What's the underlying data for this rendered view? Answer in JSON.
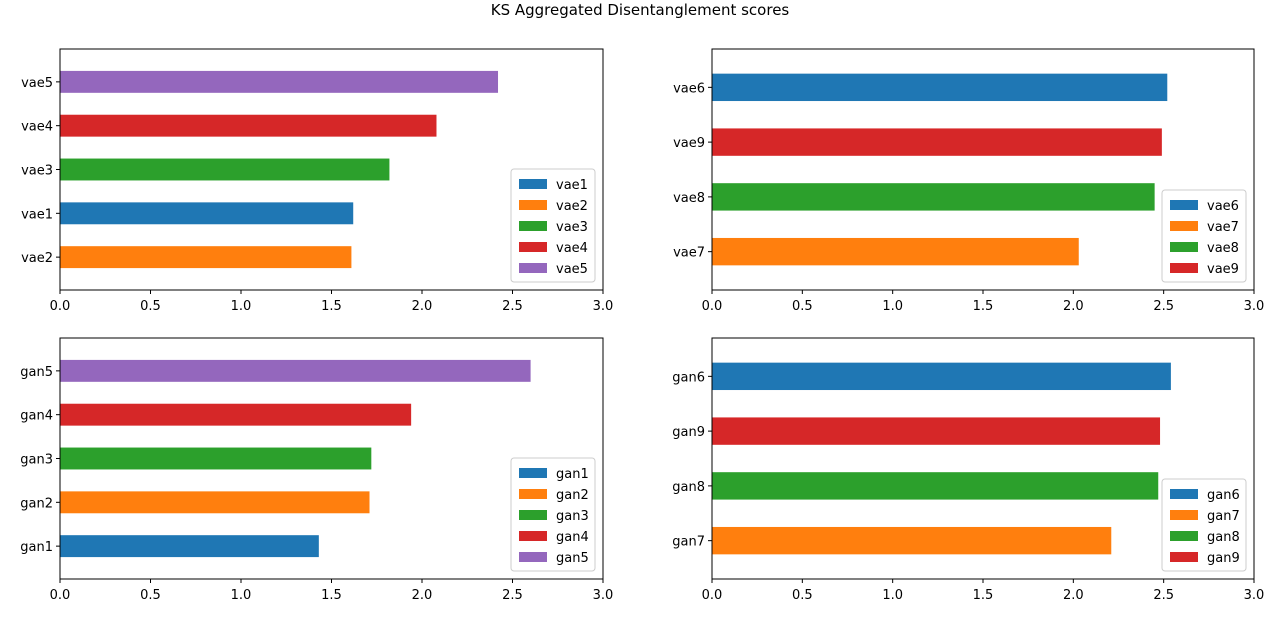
{
  "figure": {
    "title": "KS Aggregated Disentanglement scores"
  },
  "colors": {
    "blue": "#1f77b4",
    "orange": "#ff7f0e",
    "green": "#2ca02c",
    "red": "#d62728",
    "purple": "#9467bd"
  },
  "chart_data": [
    {
      "type": "bar",
      "orientation": "horizontal",
      "categories": [
        "vae2",
        "vae1",
        "vae3",
        "vae4",
        "vae5"
      ],
      "values": [
        1.61,
        1.62,
        1.82,
        2.08,
        2.42
      ],
      "bar_colors": [
        "#ff7f0e",
        "#1f77b4",
        "#2ca02c",
        "#d62728",
        "#9467bd"
      ],
      "xlim": [
        0,
        3.0
      ],
      "xticks": [
        "0.0",
        "0.5",
        "1.0",
        "1.5",
        "2.0",
        "2.5",
        "3.0"
      ],
      "legend": {
        "placement": "lower-right",
        "entries": [
          {
            "label": "vae1",
            "color": "#1f77b4"
          },
          {
            "label": "vae2",
            "color": "#ff7f0e"
          },
          {
            "label": "vae3",
            "color": "#2ca02c"
          },
          {
            "label": "vae4",
            "color": "#d62728"
          },
          {
            "label": "vae5",
            "color": "#9467bd"
          }
        ]
      }
    },
    {
      "type": "bar",
      "orientation": "horizontal",
      "categories": [
        "vae7",
        "vae8",
        "vae9",
        "vae6"
      ],
      "values": [
        2.03,
        2.45,
        2.49,
        2.52
      ],
      "bar_colors": [
        "#ff7f0e",
        "#2ca02c",
        "#d62728",
        "#1f77b4"
      ],
      "xlim": [
        0,
        3.0
      ],
      "xticks": [
        "0.0",
        "0.5",
        "1.0",
        "1.5",
        "2.0",
        "2.5",
        "3.0"
      ],
      "legend": {
        "placement": "lower-right",
        "entries": [
          {
            "label": "vae6",
            "color": "#1f77b4"
          },
          {
            "label": "vae7",
            "color": "#ff7f0e"
          },
          {
            "label": "vae8",
            "color": "#2ca02c"
          },
          {
            "label": "vae9",
            "color": "#d62728"
          }
        ]
      }
    },
    {
      "type": "bar",
      "orientation": "horizontal",
      "categories": [
        "gan1",
        "gan2",
        "gan3",
        "gan4",
        "gan5"
      ],
      "values": [
        1.43,
        1.71,
        1.72,
        1.94,
        2.6
      ],
      "bar_colors": [
        "#1f77b4",
        "#ff7f0e",
        "#2ca02c",
        "#d62728",
        "#9467bd"
      ],
      "xlim": [
        0,
        3.0
      ],
      "xticks": [
        "0.0",
        "0.5",
        "1.0",
        "1.5",
        "2.0",
        "2.5",
        "3.0"
      ],
      "legend": {
        "placement": "lower-right",
        "entries": [
          {
            "label": "gan1",
            "color": "#1f77b4"
          },
          {
            "label": "gan2",
            "color": "#ff7f0e"
          },
          {
            "label": "gan3",
            "color": "#2ca02c"
          },
          {
            "label": "gan4",
            "color": "#d62728"
          },
          {
            "label": "gan5",
            "color": "#9467bd"
          }
        ]
      }
    },
    {
      "type": "bar",
      "orientation": "horizontal",
      "categories": [
        "gan7",
        "gan8",
        "gan9",
        "gan6"
      ],
      "values": [
        2.21,
        2.47,
        2.48,
        2.54
      ],
      "bar_colors": [
        "#ff7f0e",
        "#2ca02c",
        "#d62728",
        "#1f77b4"
      ],
      "xlim": [
        0,
        3.0
      ],
      "xticks": [
        "0.0",
        "0.5",
        "1.0",
        "1.5",
        "2.0",
        "2.5",
        "3.0"
      ],
      "legend": {
        "placement": "lower-right",
        "entries": [
          {
            "label": "gan6",
            "color": "#1f77b4"
          },
          {
            "label": "gan7",
            "color": "#ff7f0e"
          },
          {
            "label": "gan8",
            "color": "#2ca02c"
          },
          {
            "label": "gan9",
            "color": "#d62728"
          }
        ]
      }
    }
  ]
}
